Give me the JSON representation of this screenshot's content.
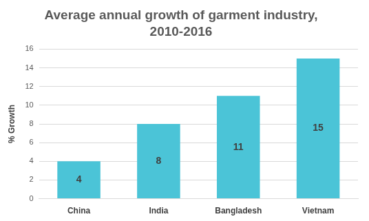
{
  "chart_data": {
    "type": "bar",
    "title": "Average annual growth of garment industry, 2010-2016",
    "y_label": "% Growth",
    "categories": [
      "China",
      "India",
      "Bangladesh",
      "Vietnam"
    ],
    "values": [
      4,
      8,
      11,
      15
    ],
    "color": "#4bc4d7",
    "ylim": [
      0,
      16
    ],
    "yticks": [
      0,
      2,
      4,
      6,
      8,
      10,
      12,
      14,
      16
    ],
    "grid": true,
    "data_labels": true
  }
}
